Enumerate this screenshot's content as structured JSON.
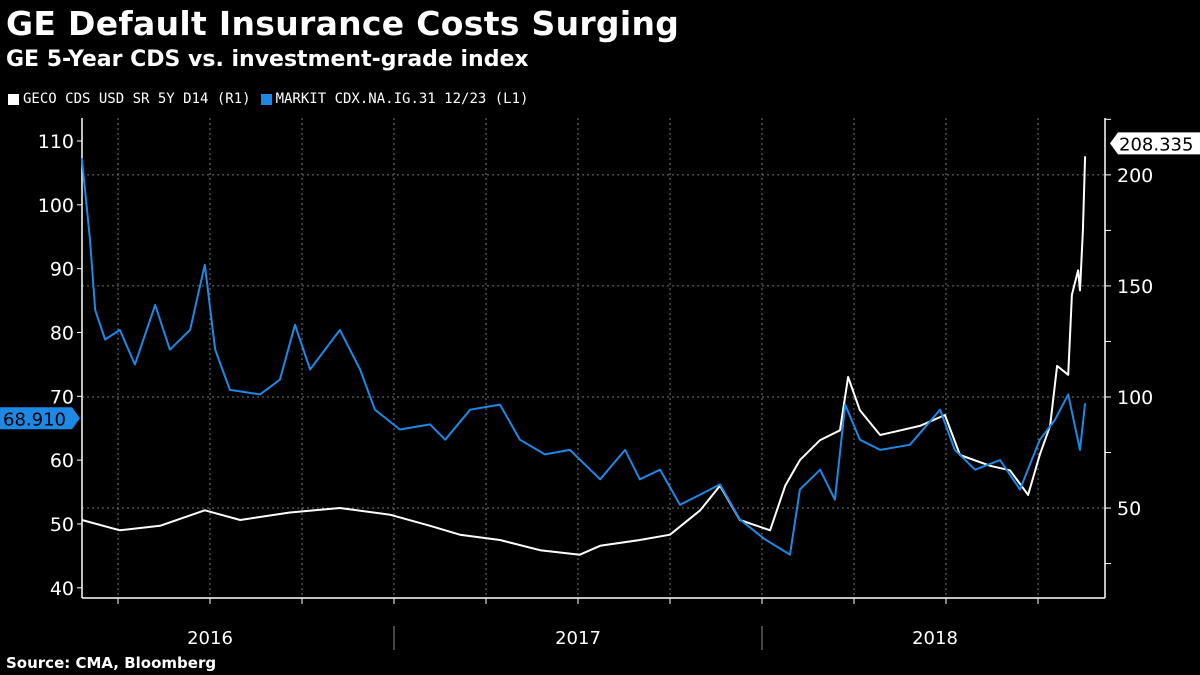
{
  "title": "GE Default Insurance Costs Surging",
  "subtitle": "GE 5-Year CDS vs. investment-grade index",
  "source": "Source: CMA, Bloomberg",
  "chart_data": {
    "type": "line",
    "title": "GE Default Insurance Costs Surging",
    "subtitle": "GE 5-Year CDS vs. investment-grade index",
    "x_unit": "decimal year",
    "xlim": [
      2016.15,
      2018.93
    ],
    "x_tick_labels": [
      "2016",
      "2017",
      "2018"
    ],
    "left_axis": {
      "ylim": [
        38.4,
        113.6
      ],
      "ticks": [
        40,
        50,
        60,
        70,
        80,
        90,
        100,
        110
      ]
    },
    "right_axis": {
      "ylim": [
        9.5,
        225.6
      ],
      "ticks": [
        50,
        100,
        150,
        200
      ]
    },
    "grid": true,
    "legend_position": "top-left",
    "series": [
      {
        "name": "GECO CDS USD SR 5Y D14  (R1)",
        "axis": "right",
        "color": "#ffffff",
        "last_value": "208.335",
        "points": [
          [
            2016.152,
            44.6
          ],
          [
            2016.255,
            40
          ],
          [
            2016.364,
            42
          ],
          [
            2016.486,
            49
          ],
          [
            2016.582,
            44.6
          ],
          [
            2016.717,
            48
          ],
          [
            2016.853,
            50
          ],
          [
            2016.989,
            47
          ],
          [
            2017.098,
            42
          ],
          [
            2017.179,
            38
          ],
          [
            2017.288,
            35.6
          ],
          [
            2017.397,
            31
          ],
          [
            2017.505,
            29
          ],
          [
            2017.56,
            33
          ],
          [
            2017.668,
            35.6
          ],
          [
            2017.75,
            38
          ],
          [
            2017.832,
            49
          ],
          [
            2017.886,
            60
          ],
          [
            2017.94,
            44.6
          ],
          [
            2018.022,
            40
          ],
          [
            2018.063,
            60
          ],
          [
            2018.103,
            71.6
          ],
          [
            2018.158,
            80.6
          ],
          [
            2018.212,
            85
          ],
          [
            2018.234,
            109
          ],
          [
            2018.266,
            94
          ],
          [
            2018.321,
            82.9
          ],
          [
            2018.429,
            87
          ],
          [
            2018.497,
            91.9
          ],
          [
            2018.538,
            73.9
          ],
          [
            2018.62,
            69
          ],
          [
            2018.674,
            67
          ],
          [
            2018.723,
            55.9
          ],
          [
            2018.755,
            74
          ],
          [
            2018.783,
            87
          ],
          [
            2018.802,
            114
          ],
          [
            2018.832,
            110
          ],
          [
            2018.842,
            146
          ],
          [
            2018.859,
            157
          ],
          [
            2018.864,
            148
          ],
          [
            2018.872,
            175
          ],
          [
            2018.878,
            208.335
          ]
        ]
      },
      {
        "name": "MARKIT CDX.NA.IG.31 12/23  (L1)",
        "axis": "left",
        "color": "#1e88e5",
        "last_value": "68.910",
        "points": [
          [
            2016.152,
            107.3
          ],
          [
            2016.174,
            94.5
          ],
          [
            2016.188,
            83.5
          ],
          [
            2016.215,
            78.9
          ],
          [
            2016.255,
            80.4
          ],
          [
            2016.296,
            75
          ],
          [
            2016.351,
            84.3
          ],
          [
            2016.391,
            77.3
          ],
          [
            2016.446,
            80.4
          ],
          [
            2016.486,
            90.6
          ],
          [
            2016.514,
            77.3
          ],
          [
            2016.554,
            71
          ],
          [
            2016.636,
            70.3
          ],
          [
            2016.69,
            72.6
          ],
          [
            2016.731,
            81.2
          ],
          [
            2016.772,
            74.2
          ],
          [
            2016.853,
            80.4
          ],
          [
            2016.908,
            74.2
          ],
          [
            2016.948,
            67.9
          ],
          [
            2017.016,
            64.8
          ],
          [
            2017.098,
            65.6
          ],
          [
            2017.139,
            63.2
          ],
          [
            2017.207,
            67.9
          ],
          [
            2017.288,
            68.7
          ],
          [
            2017.342,
            63.2
          ],
          [
            2017.41,
            60.9
          ],
          [
            2017.478,
            61.6
          ],
          [
            2017.56,
            57
          ],
          [
            2017.628,
            61.6
          ],
          [
            2017.668,
            57
          ],
          [
            2017.723,
            58.5
          ],
          [
            2017.777,
            53
          ],
          [
            2017.832,
            54.6
          ],
          [
            2017.886,
            56.2
          ],
          [
            2017.94,
            50.7
          ],
          [
            2018.008,
            47.6
          ],
          [
            2018.076,
            45.2
          ],
          [
            2018.103,
            55.4
          ],
          [
            2018.158,
            58.5
          ],
          [
            2018.198,
            53.8
          ],
          [
            2018.226,
            68.7
          ],
          [
            2018.266,
            63.2
          ],
          [
            2018.321,
            61.6
          ],
          [
            2018.402,
            62.4
          ],
          [
            2018.484,
            67.9
          ],
          [
            2018.524,
            61.6
          ],
          [
            2018.579,
            58.5
          ],
          [
            2018.647,
            60
          ],
          [
            2018.701,
            55.4
          ],
          [
            2018.755,
            63.2
          ],
          [
            2018.796,
            66.3
          ],
          [
            2018.832,
            70.3
          ],
          [
            2018.864,
            61.6
          ],
          [
            2018.878,
            68.91
          ]
        ]
      }
    ]
  }
}
